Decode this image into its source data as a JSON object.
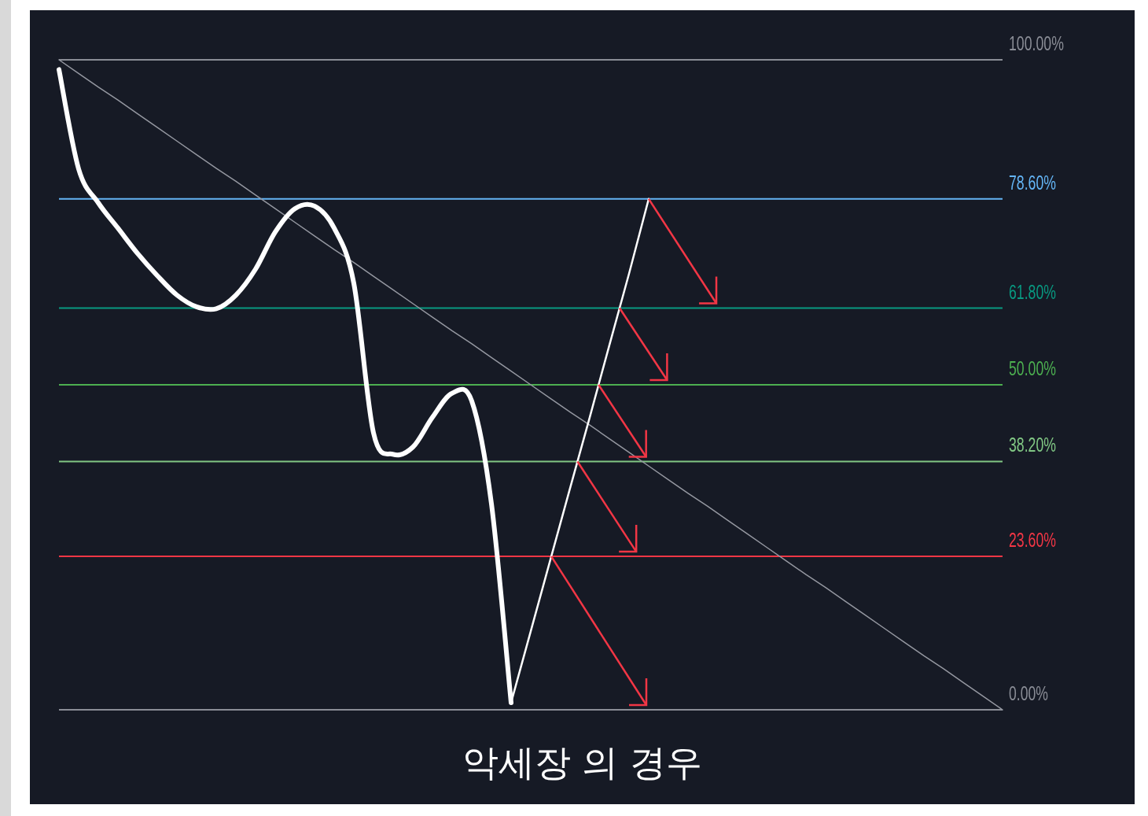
{
  "chart_data": {
    "type": "line",
    "title": "악세장 의 경우",
    "categories": [
      null,
      null,
      null,
      null,
      null,
      null,
      null,
      null,
      null,
      null,
      null,
      null,
      null,
      null,
      null,
      null,
      null,
      null,
      null,
      null,
      null,
      null,
      null,
      null,
      null,
      null,
      null,
      null,
      null,
      null,
      null,
      null,
      null,
      null,
      null,
      null,
      null,
      null,
      null,
      null,
      null,
      null,
      null,
      null,
      null,
      null,
      null,
      null,
      null
    ],
    "series": [
      {
        "color": "#ffffff",
        "values": [
          98.5,
          83.2,
          78.0,
          74.1,
          70.2,
          66.8,
          63.8,
          62.0,
          61.7,
          63.8,
          67.8,
          73.5,
          77.1,
          77.5,
          74.1,
          65.6,
          42.6,
          39.3,
          40.4,
          45.0,
          48.7,
          47.5,
          31.7,
          1.1,
          null,
          null,
          null,
          null,
          null,
          null,
          null,
          null,
          null,
          null,
          null,
          null,
          null,
          null,
          null,
          null,
          null,
          null,
          null,
          null,
          null,
          null,
          null,
          null,
          null
        ]
      },
      {
        "color": "#ffffff",
        "values": [
          null,
          null,
          null,
          null,
          null,
          null,
          null,
          null,
          null,
          null,
          null,
          null,
          null,
          null,
          null,
          null,
          null,
          null,
          null,
          null,
          null,
          null,
          null,
          1.1,
          12.1,
          23.1,
          34.1,
          45.0,
          56.1,
          67.1,
          78.6,
          null,
          null,
          null,
          null,
          null,
          null,
          null,
          null,
          null,
          null,
          null,
          null,
          null,
          null,
          null,
          null,
          null,
          null
        ]
      },
      {
        "color": "#9598a1",
        "values": [
          100,
          97.9,
          95.8,
          93.8,
          91.7,
          89.6,
          87.5,
          85.4,
          83.3,
          81.3,
          79.2,
          77.1,
          75,
          72.9,
          70.8,
          68.8,
          66.7,
          64.6,
          62.5,
          60.4,
          58.3,
          56.3,
          54.2,
          52.1,
          50,
          47.9,
          45.8,
          43.8,
          41.7,
          39.6,
          37.5,
          35.4,
          33.3,
          31.3,
          29.2,
          27.1,
          25,
          22.9,
          20.8,
          18.8,
          16.7,
          14.6,
          12.5,
          10.4,
          8.3,
          6.3,
          4.2,
          2.1,
          0
        ]
      }
    ],
    "ylim": [
      0,
      100
    ],
    "yticks": [
      {
        "value": 100,
        "label": "100.00%"
      },
      {
        "value": 78.6,
        "label": "78.60%"
      },
      {
        "value": 61.8,
        "label": "61.80%"
      },
      {
        "value": 50,
        "label": "50.00%"
      },
      {
        "value": 38.2,
        "label": "38.20%"
      },
      {
        "value": 23.6,
        "label": "23.60%"
      },
      {
        "value": 0,
        "label": "0.00%"
      }
    ],
    "ref_lines": [
      {
        "axis": "y",
        "value": 100,
        "color": "#8a8d96"
      },
      {
        "axis": "y",
        "value": 78.6,
        "color": "#64b5f6"
      },
      {
        "axis": "y",
        "value": 61.8,
        "color": "#089981"
      },
      {
        "axis": "y",
        "value": 50,
        "color": "#4caf50"
      },
      {
        "axis": "y",
        "value": 38.2,
        "color": "#81c784"
      },
      {
        "axis": "y",
        "value": 23.6,
        "color": "#f23645"
      },
      {
        "axis": "y",
        "value": 0,
        "color": "#8a8d96"
      }
    ],
    "grid": false
  }
}
